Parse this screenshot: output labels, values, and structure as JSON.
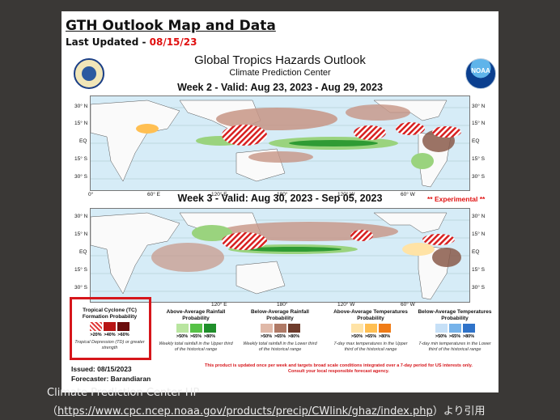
{
  "header": {
    "title": "GTH Outlook Map and Data",
    "updated_label": "Last Updated - ",
    "updated_date": "08/15/23"
  },
  "product": {
    "title": "Global Tropics Hazards Outlook",
    "subtitle": "Climate Prediction Center",
    "logo_text": "NOAA"
  },
  "week2": {
    "title": "Week 2 - Valid: Aug 23, 2023 - Aug 29, 2023"
  },
  "week3": {
    "title": "Week 3 - Valid: Aug 30, 2023 - Sep 05, 2023",
    "experimental": "** Experimental **"
  },
  "axes": {
    "lat_left": [
      "30° N",
      "15° N",
      "EQ",
      "15° S",
      "30° S"
    ],
    "lat_right": [
      "30° N",
      "15° N",
      "EQ",
      "15° S",
      "30° S"
    ],
    "lon": [
      "0°",
      "60° E",
      "120° E",
      "180°",
      "120° W",
      "60° W"
    ]
  },
  "legend": {
    "tc": {
      "title": "Tropical Cyclone (TC) Formation Probability",
      "labels": [
        ">20%",
        ">40%",
        ">60%"
      ],
      "desc": "Tropical Depression (TD) or greater strength",
      "colors": [
        "#e23b3b",
        "#b81414",
        "#6b0d0d"
      ]
    },
    "rain_above": {
      "title": "Above-Average Rainfall Probability",
      "labels": [
        ">50%",
        ">65%",
        ">80%"
      ],
      "desc": "Weekly total rainfall in the Upper third of the historical range",
      "colors": [
        "#b9e5a0",
        "#57c247",
        "#1f8f2a"
      ]
    },
    "rain_below": {
      "title": "Below-Average Rainfall Probability",
      "labels": [
        ">50%",
        ">65%",
        ">80%"
      ],
      "desc": "Weekly total rainfall in the Lower third of the historical range",
      "colors": [
        "#e0b9a8",
        "#b07a66",
        "#6e3b2b"
      ]
    },
    "temp_above": {
      "title": "Above-Average Temperatures Probability",
      "labels": [
        ">50%",
        ">65%",
        ">80%"
      ],
      "desc": "7-day max temperatures in the Upper third of the historical range",
      "colors": [
        "#ffe3a6",
        "#ffbf52",
        "#f07c17"
      ]
    },
    "temp_below": {
      "title": "Below-Average Temperatures Probability",
      "labels": [
        ">50%",
        ">65%",
        ">80%"
      ],
      "desc": "7-day min temperatures in the Lower third of the historical range",
      "colors": [
        "#c6e0f7",
        "#76b3ea",
        "#2f73c9"
      ]
    }
  },
  "footer": {
    "issued": "Issued: 08/15/2023",
    "forecaster": "Forecaster: Barandiaran",
    "note_line1": "This product is updated once per week and targets broad scale conditions integrated over a 7-day period for US interests only.",
    "note_line2": "Consult your local responsible forecast agency."
  },
  "credit": {
    "line1": "Climate Prediction Center HP",
    "open": "（",
    "url": "https://www.cpc.ncep.noaa.gov/products/precip/CWlink/ghaz/index.php",
    "close": "）より引用"
  },
  "colors": {
    "tc_highlight": "#d6161b",
    "background": "#3a3836"
  }
}
